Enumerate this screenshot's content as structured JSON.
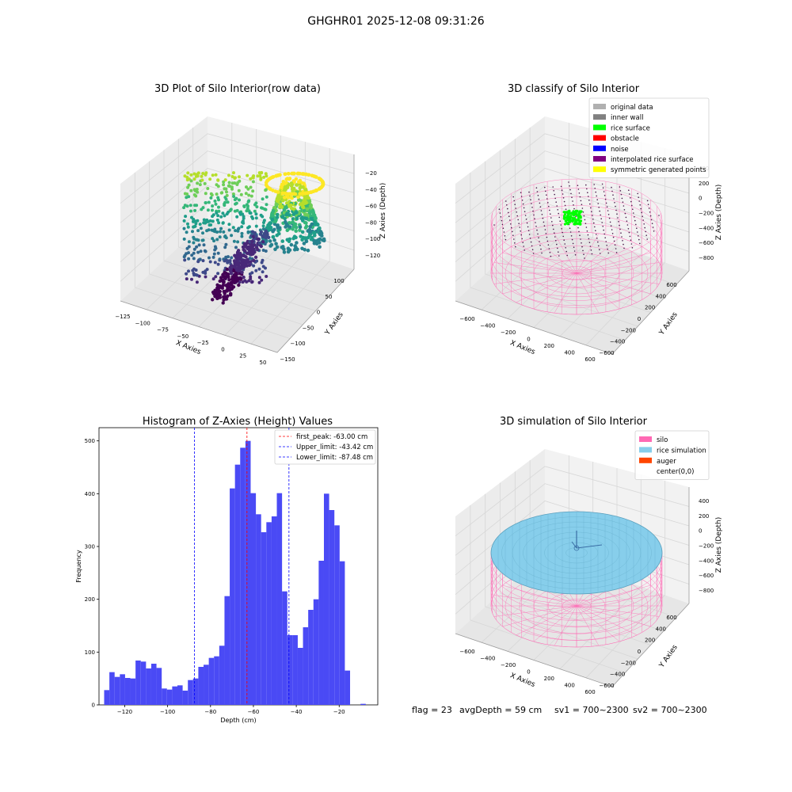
{
  "figure": {
    "suptitle": "GHGHR01 2025-12-08 09:31:26",
    "status_line": {
      "flag": "flag = 23",
      "avg_depth": "avgDepth = 59 cm",
      "sv1": "sv1 = 700~2300",
      "sv2": "sv2 = 700~2300"
    }
  },
  "chart_data": [
    {
      "type": "scatter",
      "title": "3D Plot of Silo Interior(row data)",
      "xlabel": "X Axies",
      "ylabel": "Y Axies",
      "zlabel": "Z Axies (Depth)",
      "x_ticks": [
        "−125",
        "−100",
        "−75",
        "−50",
        "−25",
        "0",
        "25",
        "50"
      ],
      "y_ticks": [
        "−150",
        "−100",
        "−50",
        "0",
        "50",
        "100"
      ],
      "z_ticks": [
        "−120",
        "−100",
        "−80",
        "−60",
        "−40",
        "−20"
      ],
      "xlim": [
        -125,
        50
      ],
      "ylim": [
        -150,
        100
      ],
      "zlim": [
        -130,
        -15
      ],
      "colormap": "viridis",
      "grid": true
    },
    {
      "type": "scatter",
      "title": "3D classify of Silo Interior",
      "xlabel": "X Axies",
      "ylabel": "Y Axies",
      "zlabel": "Z Axies (Depth)",
      "x_ticks": [
        "−600",
        "−400",
        "−200",
        "0",
        "200",
        "400",
        "600"
      ],
      "y_ticks": [
        "−600",
        "−400",
        "−200",
        "0",
        "200",
        "400",
        "600"
      ],
      "z_ticks": [
        "−800",
        "−600",
        "−400",
        "−200",
        "0",
        "200",
        "400"
      ],
      "legend_position": "top-right",
      "grid": true,
      "legend": [
        {
          "label": "original data",
          "color": "#b0b0b0"
        },
        {
          "label": "inner wall",
          "color": "#808080"
        },
        {
          "label": "rice surface",
          "color": "#00ff00"
        },
        {
          "label": "obstacle",
          "color": "#ff0000"
        },
        {
          "label": "noise",
          "color": "#0000ff"
        },
        {
          "label": "interpolated rice surface",
          "color": "#800080"
        },
        {
          "label": "symmetric generated points",
          "color": "#ffff00"
        }
      ]
    },
    {
      "type": "bar",
      "title": "Histogram of Z-Axies (Height) Values",
      "xlabel": "Depth (cm)",
      "ylabel": "Frequency",
      "xlim": [
        -132,
        -2
      ],
      "ylim": [
        0,
        525
      ],
      "x_ticks": [
        -120,
        -100,
        -80,
        -60,
        -40,
        -20
      ],
      "y_ticks": [
        0,
        100,
        200,
        300,
        400,
        500
      ],
      "bar_color": "#4a4af5",
      "bin_start": -129.6,
      "bin_width": 2.44,
      "values": [
        28,
        62,
        53,
        58,
        51,
        50,
        84,
        82,
        69,
        78,
        70,
        31,
        29,
        35,
        37,
        27,
        47,
        50,
        72,
        76,
        89,
        92,
        112,
        206,
        410,
        455,
        487,
        500,
        401,
        361,
        327,
        346,
        357,
        401,
        215,
        132,
        132,
        108,
        147,
        180,
        200,
        273,
        400,
        369,
        340,
        272,
        65,
        0,
        0,
        2,
        0
      ],
      "legend_position": "top-right",
      "reference_lines": [
        {
          "label": "first_peak: -63.00 cm",
          "value": -63.0,
          "color": "#ff0000"
        },
        {
          "label": "Upper_limit: -43.42 cm",
          "value": -43.42,
          "color": "#0000ff"
        },
        {
          "label": "Lower_limit: -87.48 cm",
          "value": -87.48,
          "color": "#0000ff"
        }
      ]
    },
    {
      "type": "area",
      "title": "3D simulation of Silo Interior",
      "xlabel": "X Axies",
      "ylabel": "Y Axies",
      "zlabel": "Z Axies (Depth)",
      "x_ticks": [
        "−600",
        "−400",
        "−200",
        "0",
        "200",
        "400",
        "600"
      ],
      "y_ticks": [
        "−600",
        "−400",
        "−200",
        "0",
        "200",
        "400",
        "600"
      ],
      "z_ticks": [
        "−800",
        "−600",
        "−400",
        "−200",
        "0",
        "200",
        "400"
      ],
      "legend_position": "top-right",
      "grid": true,
      "legend": [
        {
          "label": "silo",
          "color": "#ff69b4"
        },
        {
          "label": "rice simulation",
          "color": "#87ceeb"
        },
        {
          "label": "auger",
          "color": "#ff4500"
        },
        {
          "label": "center(0,0)",
          "color": "#ffffff"
        }
      ]
    }
  ]
}
